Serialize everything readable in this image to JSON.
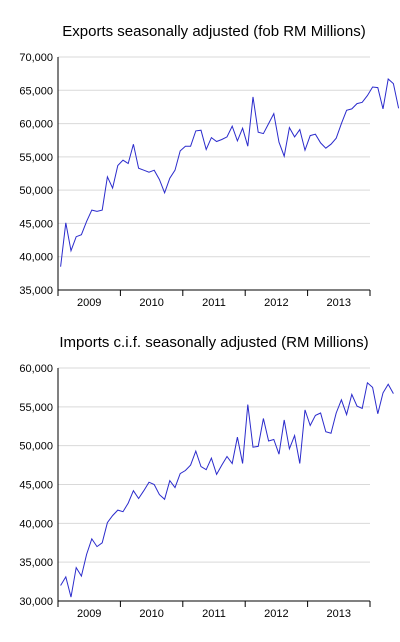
{
  "chart_data": [
    {
      "type": "line",
      "title": "Exports seasonally adjusted (fob RM Millions)",
      "xlabel": "",
      "ylabel": "",
      "ylim": [
        35000,
        70000
      ],
      "yticks": [
        "35,000",
        "40,000",
        "45,000",
        "50,000",
        "55,000",
        "60,000",
        "65,000",
        "70,000"
      ],
      "xticks": [
        "2009",
        "2010",
        "2011",
        "2012",
        "2013"
      ],
      "grid": true,
      "color": "#2b2bcc",
      "series": [
        {
          "x_start": "2009-01",
          "frequency": "monthly",
          "values": [
            38500,
            45100,
            40900,
            43000,
            43300,
            45300,
            47000,
            46800,
            47000,
            52000,
            50300,
            53700,
            54500,
            54000,
            56900,
            53300,
            53000,
            52700,
            53000,
            51600,
            49600,
            51800,
            53000,
            55900,
            56600,
            56600,
            58900,
            59000,
            56100,
            57900,
            57300,
            57600,
            58000,
            59600,
            57400,
            59300,
            56600,
            64000,
            58700,
            58500,
            60000,
            61500,
            57200,
            55100,
            59400,
            58000,
            59100,
            56000,
            58200,
            58400,
            57100,
            56300,
            56900,
            57800,
            60000,
            62000,
            62200,
            63000,
            63200,
            64200,
            65500,
            65400,
            62200,
            66700,
            66000,
            62300
          ]
        }
      ]
    },
    {
      "type": "line",
      "title": "Imports c.i.f. seasonally adjusted (RM Millions)",
      "xlabel": "",
      "ylabel": "",
      "ylim": [
        30000,
        60000
      ],
      "yticks": [
        "30,000",
        "35,000",
        "40,000",
        "45,000",
        "50,000",
        "55,000",
        "60,000"
      ],
      "xticks": [
        "2009",
        "2010",
        "2011",
        "2012",
        "2013"
      ],
      "grid": true,
      "color": "#2b2bcc",
      "series": [
        {
          "x_start": "2009-01",
          "frequency": "monthly",
          "values": [
            32000,
            33100,
            30500,
            34300,
            33200,
            36000,
            38000,
            37000,
            37500,
            40100,
            41000,
            41700,
            41500,
            42600,
            44200,
            43200,
            44200,
            45300,
            45000,
            43700,
            43100,
            45500,
            44600,
            46400,
            46800,
            47500,
            49300,
            47300,
            46900,
            48400,
            46300,
            47500,
            48600,
            47700,
            51100,
            47700,
            55300,
            49800,
            49900,
            53500,
            50600,
            50800,
            48900,
            53300,
            49600,
            51300,
            47700,
            54600,
            52600,
            53900,
            54200,
            51800,
            51600,
            54200,
            55900,
            54000,
            56600,
            55100,
            54800,
            58100,
            57500,
            54100,
            56800,
            57900,
            56700
          ]
        }
      ]
    }
  ]
}
